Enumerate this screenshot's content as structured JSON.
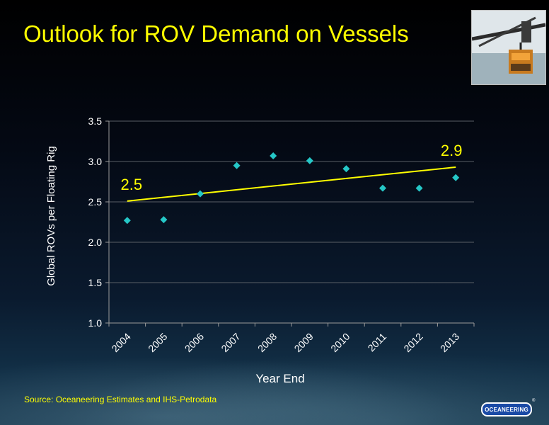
{
  "slide": {
    "title": "Outlook for ROV Demand on Vessels",
    "source": "Source:  Oceaneering Estimates and IHS-Petrodata",
    "logo_text": "OCEANEERING",
    "logo_mark": "®",
    "colors": {
      "title": "#ffff00",
      "trend": "#ffff00",
      "points": "#25c7c7",
      "logo": "#1a4aa6"
    }
  },
  "chart_data": {
    "type": "scatter",
    "categories": [
      "2004",
      "2005",
      "2006",
      "2007",
      "2008",
      "2009",
      "2010",
      "2011",
      "2012",
      "2013"
    ],
    "values": [
      2.27,
      2.28,
      2.6,
      2.95,
      3.07,
      3.01,
      2.91,
      2.67,
      2.67,
      2.8
    ],
    "trendline": {
      "start": 2.51,
      "end": 2.93
    },
    "annotations": [
      {
        "text": "2.5",
        "category": "2004"
      },
      {
        "text": "2.9",
        "category": "2013"
      }
    ],
    "xlabel": "Year End",
    "ylabel": "Global ROVs per Floating Rig",
    "ylim": [
      1.0,
      3.5
    ],
    "yticks": [
      "1.0",
      "1.5",
      "2.0",
      "2.5",
      "3.0",
      "3.5"
    ],
    "grid": true,
    "legend": "none"
  }
}
